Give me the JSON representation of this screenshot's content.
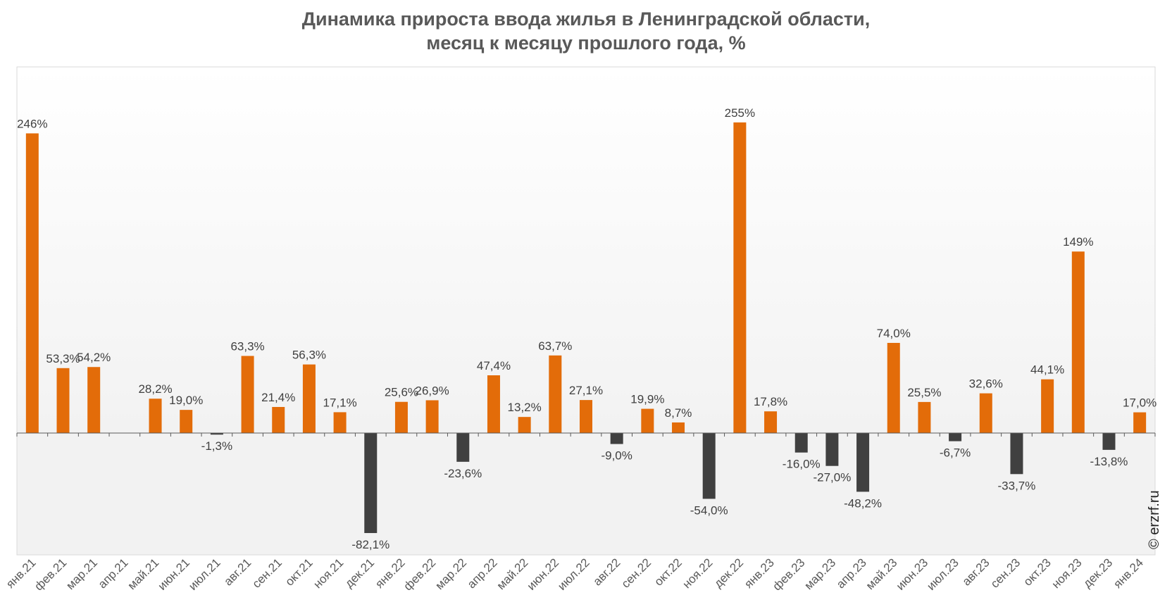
{
  "chart_data": {
    "type": "bar",
    "title": [
      "Динамика прироста ввода жилья в Ленинградской области,",
      "месяц к месяцу прошлого года, %"
    ],
    "categories": [
      "янв.21",
      "фев.21",
      "мар.21",
      "апр.21",
      "май.21",
      "июн.21",
      "июл.21",
      "авг.21",
      "сен.21",
      "окт.21",
      "ноя.21",
      "дек.21",
      "янв.22",
      "фев.22",
      "мар.22",
      "апр.22",
      "май.22",
      "июн.22",
      "июл.22",
      "авг.22",
      "сен.22",
      "окт.22",
      "ноя.22",
      "дек.22",
      "янв.23",
      "фев.23",
      "мар.23",
      "апр.23",
      "май.23",
      "июн.23",
      "июл.23",
      "авг.23",
      "сен.23",
      "окт.23",
      "ноя.23",
      "дек.23",
      "янв.24"
    ],
    "values": [
      246,
      53.3,
      54.2,
      null,
      28.2,
      19.0,
      -1.3,
      63.3,
      21.4,
      56.3,
      17.1,
      -82.1,
      25.6,
      26.9,
      -23.6,
      47.4,
      13.2,
      63.7,
      27.1,
      -9.0,
      19.9,
      8.7,
      -54.0,
      255,
      17.8,
      -16.0,
      -27.0,
      -48.2,
      74.0,
      25.5,
      -6.7,
      32.6,
      -33.7,
      44.1,
      149,
      -13.8,
      17.0
    ],
    "labels": [
      "246%",
      "53,3%",
      "54,2%",
      "",
      "28,2%",
      "19,0%",
      "-1,3%",
      "63,3%",
      "21,4%",
      "56,3%",
      "17,1%",
      "-82,1%",
      "25,6%",
      "26,9%",
      "-23,6%",
      "47,4%",
      "13,2%",
      "63,7%",
      "27,1%",
      "-9,0%",
      "19,9%",
      "8,7%",
      "-54,0%",
      "255%",
      "17,8%",
      "-16,0%",
      "-27,0%",
      "-48,2%",
      "74,0%",
      "25,5%",
      "-6,7%",
      "32,6%",
      "-33,7%",
      "44,1%",
      "149%",
      "-13,8%",
      "17,0%"
    ],
    "ylim": [
      -100,
      300
    ],
    "grid": false,
    "legend": "none",
    "colors": {
      "positive": "#E36C09",
      "negative": "#404040",
      "label": "#404040",
      "axis": "#595959"
    }
  },
  "watermark": "© erzrf.ru"
}
